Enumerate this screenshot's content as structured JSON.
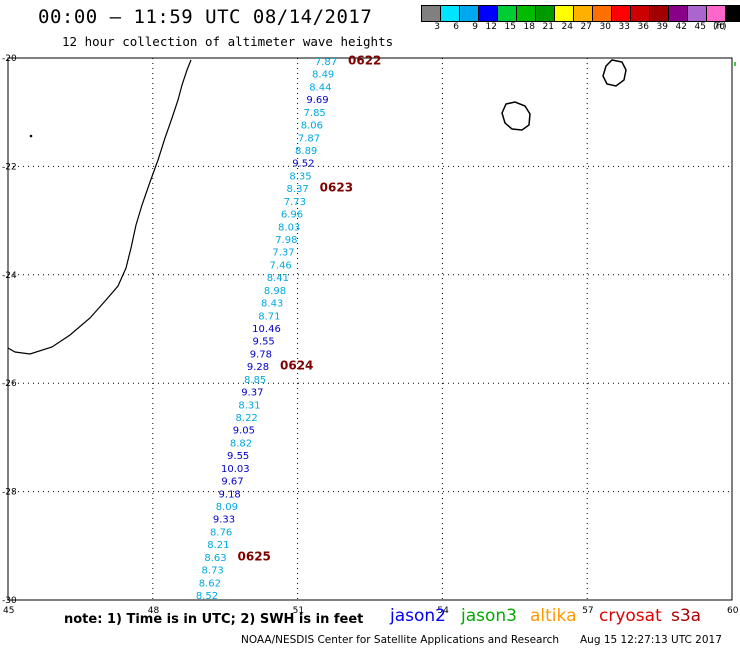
{
  "title": "00:00 — 11:59 UTC 08/14/2017",
  "subtitle": "12 hour collection of altimeter wave heights",
  "legend": {
    "colors": [
      "#808080",
      "#00e5ff",
      "#00a8f0",
      "#0000ff",
      "#00cc33",
      "#00bb00",
      "#009900",
      "#ffff00",
      "#ffb000",
      "#ff7000",
      "#ff0000",
      "#cc0000",
      "#a00000",
      "#880088",
      "#aa66cc",
      "#ff66cc",
      "#000000"
    ],
    "ticks": [
      "3",
      "6",
      "9",
      "12",
      "15",
      "18",
      "21",
      "24",
      "27",
      "30",
      "33",
      "36",
      "39",
      "42",
      "45",
      "70"
    ],
    "unit": "(ft)"
  },
  "axes": {
    "lat_labels": [
      "-20",
      "-22",
      "-24",
      "-26",
      "-28",
      "-30"
    ],
    "lon_labels": [
      "45",
      "48",
      "51",
      "54",
      "57",
      "60"
    ]
  },
  "track": {
    "colors": {
      "light": "#00a8e0",
      "dark": "#0000cc"
    },
    "points": [
      {
        "v": "7.87",
        "c": "light"
      },
      {
        "v": "8.49",
        "c": "light"
      },
      {
        "v": "8.44",
        "c": "light"
      },
      {
        "v": "9.69",
        "c": "dark"
      },
      {
        "v": "7.85",
        "c": "light"
      },
      {
        "v": "8.06",
        "c": "light"
      },
      {
        "v": "7.87",
        "c": "light"
      },
      {
        "v": "8.89",
        "c": "light"
      },
      {
        "v": "9.52",
        "c": "dark"
      },
      {
        "v": "8.35",
        "c": "light"
      },
      {
        "v": "8.37",
        "c": "light"
      },
      {
        "v": "7.73",
        "c": "light"
      },
      {
        "v": "6.96",
        "c": "light"
      },
      {
        "v": "8.03",
        "c": "light"
      },
      {
        "v": "7.98",
        "c": "light"
      },
      {
        "v": "7.37",
        "c": "light"
      },
      {
        "v": "7.46",
        "c": "light"
      },
      {
        "v": "8.41",
        "c": "light"
      },
      {
        "v": "8.98",
        "c": "light"
      },
      {
        "v": "8.43",
        "c": "light"
      },
      {
        "v": "8.71",
        "c": "light"
      },
      {
        "v": "10.46",
        "c": "dark"
      },
      {
        "v": "9.55",
        "c": "dark"
      },
      {
        "v": "9.78",
        "c": "dark"
      },
      {
        "v": "9.28",
        "c": "dark"
      },
      {
        "v": "8.85",
        "c": "light"
      },
      {
        "v": "9.37",
        "c": "dark"
      },
      {
        "v": "8.31",
        "c": "light"
      },
      {
        "v": "8.22",
        "c": "light"
      },
      {
        "v": "9.05",
        "c": "dark"
      },
      {
        "v": "8.82",
        "c": "light"
      },
      {
        "v": "9.55",
        "c": "dark"
      },
      {
        "v": "10.03",
        "c": "dark"
      },
      {
        "v": "9.67",
        "c": "dark"
      },
      {
        "v": "9.18",
        "c": "dark"
      },
      {
        "v": "8.09",
        "c": "light"
      },
      {
        "v": "9.33",
        "c": "dark"
      },
      {
        "v": "8.76",
        "c": "light"
      },
      {
        "v": "8.21",
        "c": "light"
      },
      {
        "v": "8.63",
        "c": "light"
      },
      {
        "v": "8.73",
        "c": "light"
      },
      {
        "v": "8.62",
        "c": "light"
      },
      {
        "v": "8.52",
        "c": "light"
      }
    ],
    "times": [
      "0622",
      "0623",
      "0624",
      "0625"
    ],
    "time_color": "#800000"
  },
  "notes": "note: 1) Time is in UTC; 2) SWH is in feet",
  "satellites": [
    {
      "name": "jason2",
      "color": "#0000ee"
    },
    {
      "name": "jason3",
      "color": "#00aa00"
    },
    {
      "name": "altika",
      "color": "#ff9900"
    },
    {
      "name": "cryosat",
      "color": "#dd0000"
    },
    {
      "name": "s3a",
      "color": "#aa0000"
    }
  ],
  "credit": "NOAA/NESDIS Center for Satellite Applications and Research",
  "timestamp": "Aug 15 12:27:13 UTC 2017"
}
